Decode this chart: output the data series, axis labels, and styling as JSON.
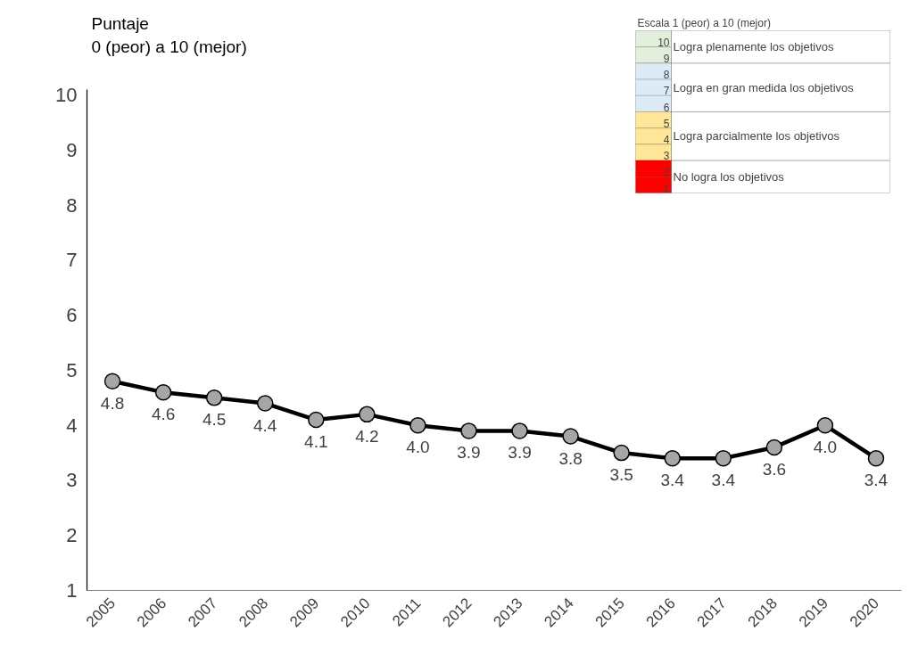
{
  "chart_data": {
    "type": "line",
    "ylabel": "Puntaje\n0 (peor) a 10 (mejor)",
    "categories": [
      "2005",
      "2006",
      "2007",
      "2008",
      "2009",
      "2010",
      "2011",
      "2012",
      "2013",
      "2014",
      "2015",
      "2016",
      "2017",
      "2018",
      "2019",
      "2020"
    ],
    "series": [
      {
        "color": "#000000",
        "values": [
          4.8,
          4.6,
          4.5,
          4.4,
          4.1,
          4.2,
          4.0,
          3.9,
          3.9,
          3.8,
          3.5,
          3.4,
          3.4,
          3.6,
          4.0,
          3.4
        ],
        "value_labels": [
          "4.8",
          "4.6",
          "4.5",
          "4.4",
          "4.1",
          "4.2",
          "4.0",
          "3.9",
          "3.9",
          "3.8",
          "3.5",
          "3.4",
          "3.4",
          "3.6",
          "4.0",
          "3.4"
        ]
      }
    ],
    "ylim": [
      1,
      10.1
    ],
    "yticks": [
      1,
      2,
      3,
      4,
      5,
      6,
      7,
      8,
      9,
      10
    ],
    "marker": "circle",
    "line_style": "solid",
    "grid": false,
    "annotations": [
      "Escala 1 (peor) a 10 (mejor)",
      "10",
      "9",
      "8",
      "7",
      "6",
      "5",
      "4",
      "3",
      "2",
      "1",
      "Logra plenamente los objetivos",
      "Logra en gran medida los objetivos",
      "Logra parcialmente los objetivos",
      "No logra los objetivos"
    ]
  }
}
